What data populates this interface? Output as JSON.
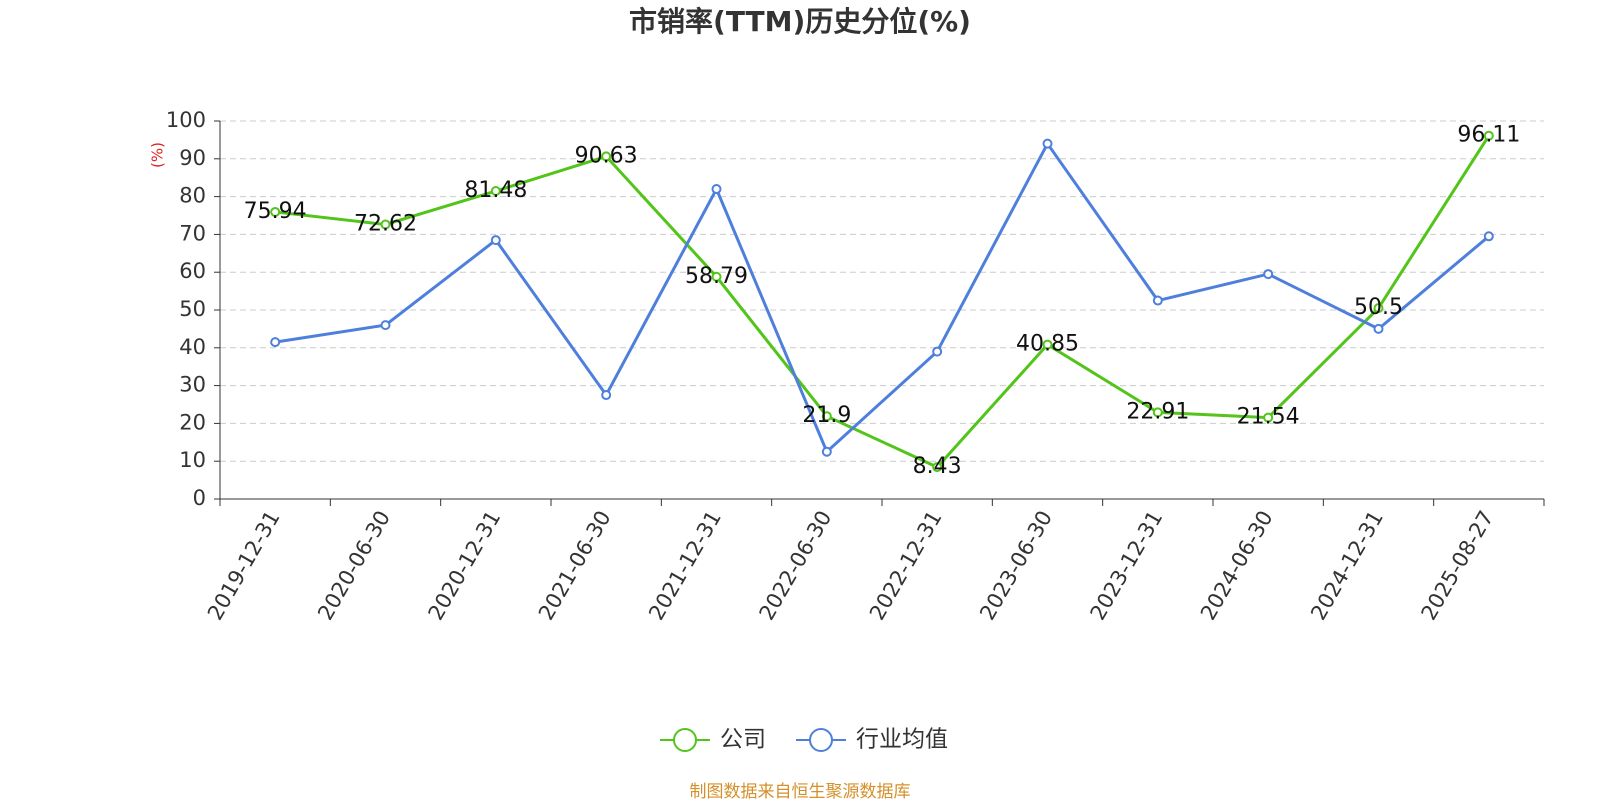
{
  "chart_data": {
    "type": "line",
    "title": "市销率(TTM)历史分位(%)",
    "y_label": "(%)",
    "categories": [
      "2019-12-31",
      "2020-06-30",
      "2020-12-31",
      "2021-06-30",
      "2021-12-31",
      "2022-06-30",
      "2022-12-31",
      "2023-06-30",
      "2023-12-31",
      "2024-06-30",
      "2024-12-31",
      "2025-08-27"
    ],
    "series": [
      {
        "name": "公司",
        "color": "#52c41a",
        "values": [
          75.94,
          72.62,
          81.48,
          90.63,
          58.79,
          21.9,
          8.43,
          40.85,
          22.91,
          21.54,
          50.5,
          96.11
        ]
      },
      {
        "name": "行业均值",
        "color": "#4e7fdc",
        "values": [
          41.5,
          46,
          68.5,
          27.5,
          82,
          12.5,
          39,
          94,
          52.5,
          59.5,
          45,
          69.5
        ]
      }
    ],
    "ylim": [
      0,
      100
    ],
    "yticks": [
      0,
      10,
      20,
      30,
      40,
      50,
      60,
      70,
      80,
      90,
      100
    ],
    "grid": true,
    "source": "制图数据来自恒生聚源数据库"
  }
}
